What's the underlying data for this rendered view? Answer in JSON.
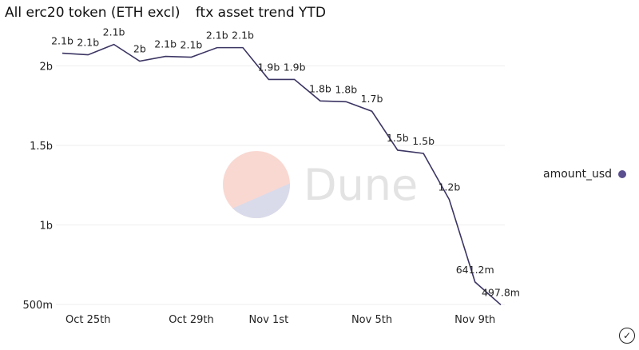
{
  "header": {
    "title": "All erc20 token (ETH excl)",
    "subtitle": "ftx asset trend YTD"
  },
  "legend": {
    "label": "amount_usd",
    "color": "#5b4f8f"
  },
  "watermark": "Dune",
  "icons": {
    "status": "check-circle-icon"
  },
  "chart_data": {
    "type": "line",
    "title": "ftx asset trend YTD",
    "x": [
      "2022-10-24",
      "2022-10-25",
      "2022-10-26",
      "2022-10-27",
      "2022-10-28",
      "2022-10-29",
      "2022-10-30",
      "2022-10-31",
      "2022-11-01",
      "2022-11-02",
      "2022-11-03",
      "2022-11-04",
      "2022-11-05",
      "2022-11-06",
      "2022-11-07",
      "2022-11-08",
      "2022-11-09",
      "2022-11-10"
    ],
    "series": [
      {
        "name": "amount_usd",
        "color": "#3b3563",
        "values": [
          2080000000.0,
          2070000000.0,
          2135000000.0,
          2030000000.0,
          2060000000.0,
          2055000000.0,
          2115000000.0,
          2115000000.0,
          1915000000.0,
          1915000000.0,
          1780000000.0,
          1775000000.0,
          1715000000.0,
          1470000000.0,
          1450000000.0,
          1160000000.0,
          641200000.0,
          497800000.0
        ],
        "labels": [
          "2.1b",
          "2.1b",
          "2.1b",
          "2b",
          "2.1b",
          "2.1b",
          "2.1b",
          "2.1b",
          "1.9b",
          "1.9b",
          "1.8b",
          "1.8b",
          "1.7b",
          "1.5b",
          "1.5b",
          "1.2b",
          "641.2m",
          "497.8m"
        ]
      }
    ],
    "yticks": [
      {
        "value": 500000000.0,
        "label": "500m"
      },
      {
        "value": 1000000000.0,
        "label": "1b"
      },
      {
        "value": 1500000000.0,
        "label": "1.5b"
      },
      {
        "value": 2000000000.0,
        "label": "2b"
      }
    ],
    "xticks": [
      {
        "index": 1,
        "label": "Oct 25th"
      },
      {
        "index": 5,
        "label": "Oct 29th"
      },
      {
        "index": 8,
        "label": "Nov 1st"
      },
      {
        "index": 12,
        "label": "Nov 5th"
      },
      {
        "index": 16,
        "label": "Nov 9th"
      }
    ],
    "ylim": [
      500000000.0,
      2200000000.0
    ],
    "grid": true,
    "legend": "right"
  }
}
